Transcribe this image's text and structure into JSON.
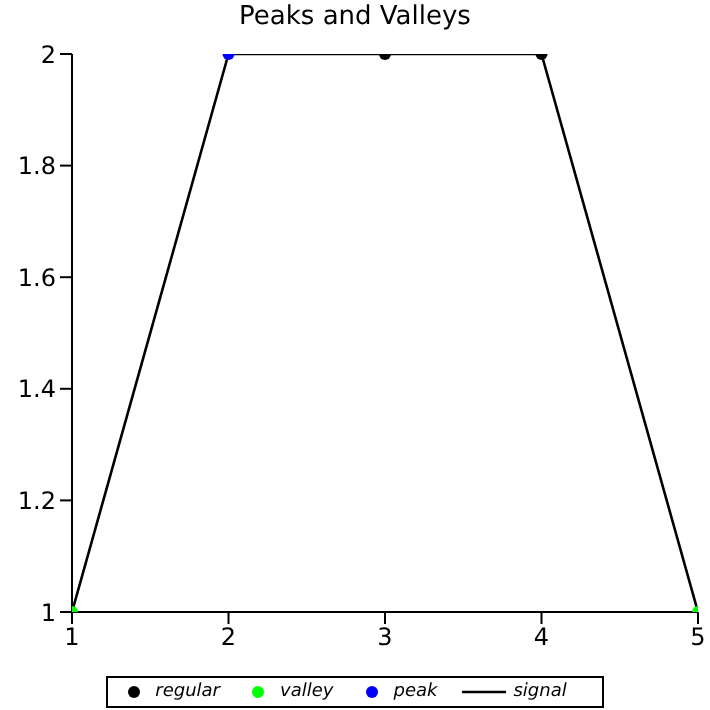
{
  "chart_data": {
    "type": "line",
    "title": "Peaks and Valleys",
    "xlim": [
      1,
      5
    ],
    "xticks": [
      1,
      2,
      3,
      4,
      5
    ],
    "ylim": [
      1,
      2
    ],
    "yticks": [
      1,
      1.2,
      1.4,
      1.6,
      1.8,
      2
    ],
    "grid": false,
    "legend": "bottom",
    "marker": "circle",
    "series": [
      {
        "name": "regular",
        "type": "scatter",
        "color": "#000000",
        "x": [
          3,
          4
        ],
        "values": [
          2,
          2
        ]
      },
      {
        "name": "valley",
        "type": "scatter",
        "color": "#00ff00",
        "x": [
          1,
          5
        ],
        "values": [
          1,
          1
        ]
      },
      {
        "name": "peak",
        "type": "scatter",
        "color": "#0000ff",
        "x": [
          2
        ],
        "values": [
          2
        ]
      },
      {
        "name": "signal",
        "marker": "none",
        "color": "#000000",
        "x": [
          1,
          2,
          3,
          4,
          5
        ],
        "values": [
          1,
          2,
          2,
          2,
          1
        ]
      }
    ]
  }
}
